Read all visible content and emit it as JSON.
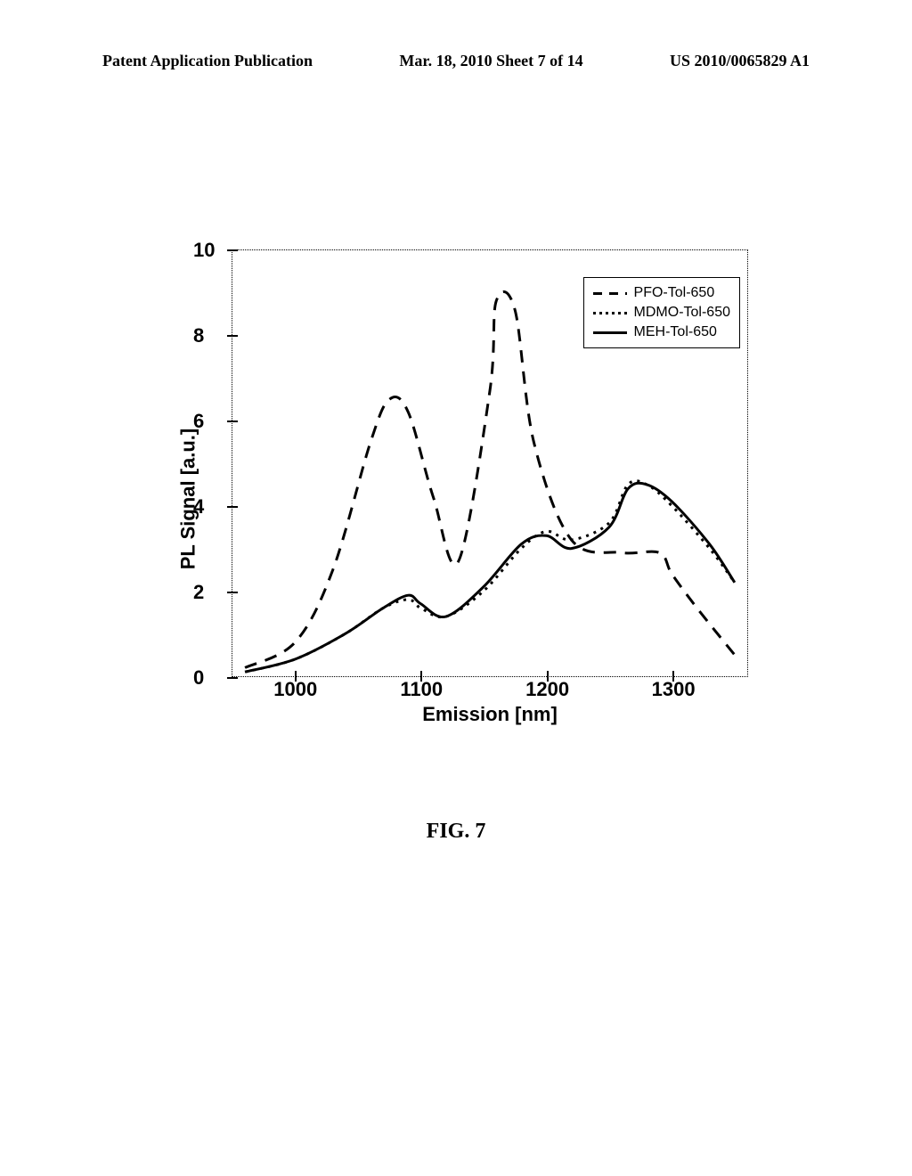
{
  "header": {
    "left": "Patent Application Publication",
    "center": "Mar. 18, 2010  Sheet 7 of 14",
    "right": "US 2010/0065829 A1"
  },
  "figure_caption": "FIG. 7",
  "chart": {
    "type": "line",
    "xlabel": "Emission [nm]",
    "ylabel": "PL Signal [a.u.]",
    "xlim": [
      950,
      1360
    ],
    "ylim": [
      0,
      10
    ],
    "xticks": [
      1000,
      1100,
      1200,
      1300
    ],
    "yticks": [
      0,
      2,
      4,
      6,
      8,
      10
    ],
    "background_color": "#ffffff",
    "axis_color": "#000000",
    "plot_line_width": 3,
    "legend": {
      "position": "upper-right",
      "items": [
        {
          "label": "PFO-Tol-650",
          "style": "long-dash",
          "color": "#000000"
        },
        {
          "label": "MDMO-Tol-650",
          "style": "dotted",
          "color": "#000000"
        },
        {
          "label": "MEH-Tol-650",
          "style": "solid",
          "color": "#000000"
        }
      ]
    },
    "series": {
      "pfo": {
        "x": [
          960,
          1000,
          1030,
          1060,
          1075,
          1090,
          1110,
          1130,
          1155,
          1160,
          1175,
          1190,
          1220,
          1260,
          1290,
          1300,
          1320,
          1350
        ],
        "y": [
          0.2,
          0.8,
          2.5,
          5.5,
          6.5,
          6.2,
          4.2,
          2.7,
          6.7,
          8.8,
          8.6,
          5.5,
          3.2,
          2.9,
          2.9,
          2.4,
          1.6,
          0.5
        ]
      },
      "mdmo": {
        "x": [
          960,
          1000,
          1040,
          1070,
          1090,
          1100,
          1120,
          1150,
          1180,
          1200,
          1220,
          1250,
          1265,
          1280,
          1300,
          1330,
          1350
        ],
        "y": [
          0.1,
          0.4,
          1.0,
          1.6,
          1.8,
          1.6,
          1.4,
          2.0,
          3.0,
          3.4,
          3.2,
          3.6,
          4.5,
          4.5,
          4.0,
          3.0,
          2.2
        ]
      },
      "meh": {
        "x": [
          960,
          1000,
          1040,
          1070,
          1090,
          1100,
          1120,
          1150,
          1180,
          1200,
          1220,
          1250,
          1265,
          1280,
          1300,
          1330,
          1350
        ],
        "y": [
          0.1,
          0.4,
          1.0,
          1.6,
          1.9,
          1.7,
          1.4,
          2.1,
          3.1,
          3.3,
          3.0,
          3.5,
          4.4,
          4.5,
          4.1,
          3.1,
          2.2
        ]
      }
    }
  }
}
